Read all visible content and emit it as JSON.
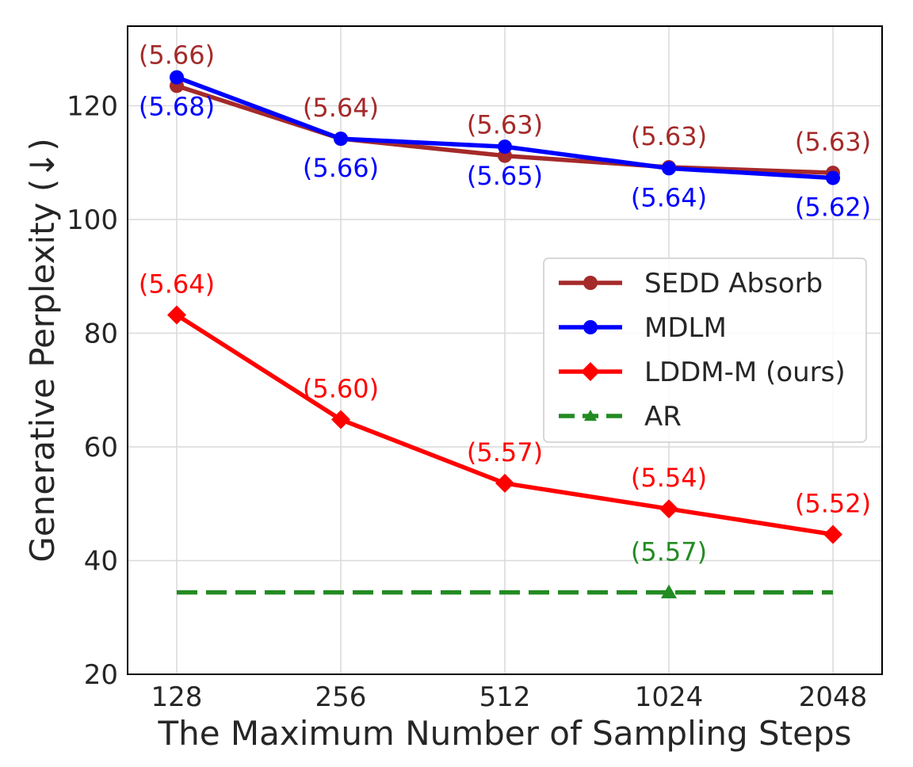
{
  "chart_data": {
    "type": "line",
    "title": "",
    "xlabel": "The Maximum Number of Sampling Steps",
    "ylabel": "Generative Perplexity (↓)",
    "categories": [
      "128",
      "256",
      "512",
      "1024",
      "2048"
    ],
    "ylim": [
      20,
      134
    ],
    "yticks": [
      20,
      40,
      60,
      80,
      100,
      120
    ],
    "grid": true,
    "legend_position": "center-right",
    "series": [
      {
        "name": "SEDD Absorb",
        "color": "#a52a2a",
        "marker": "circle",
        "linestyle": "solid",
        "values": [
          123.5,
          114.2,
          111.2,
          109.2,
          108.2
        ],
        "labels": [
          "(5.66)",
          "(5.64)",
          "(5.63)",
          "(5.63)",
          "(5.63)"
        ],
        "label_position": "above"
      },
      {
        "name": "MDLM",
        "color": "#0000ff",
        "marker": "circle",
        "linestyle": "solid",
        "values": [
          125.0,
          114.2,
          112.8,
          109.0,
          107.3
        ],
        "labels": [
          "(5.68)",
          "(5.66)",
          "(5.65)",
          "(5.64)",
          "(5.62)"
        ],
        "label_position": "below"
      },
      {
        "name": "LDDM-M (ours)",
        "color": "#ff0000",
        "marker": "diamond",
        "linestyle": "solid",
        "values": [
          83.2,
          64.8,
          53.6,
          49.1,
          44.6
        ],
        "labels": [
          "(5.64)",
          "(5.60)",
          "(5.57)",
          "(5.54)",
          "(5.52)"
        ],
        "label_position": "above"
      },
      {
        "name": "AR",
        "color": "#228b22",
        "marker": "triangle",
        "linestyle": "dashed",
        "value": 34.4,
        "marker_at": "1024",
        "label": "(5.57)",
        "label_position": "above"
      }
    ]
  }
}
